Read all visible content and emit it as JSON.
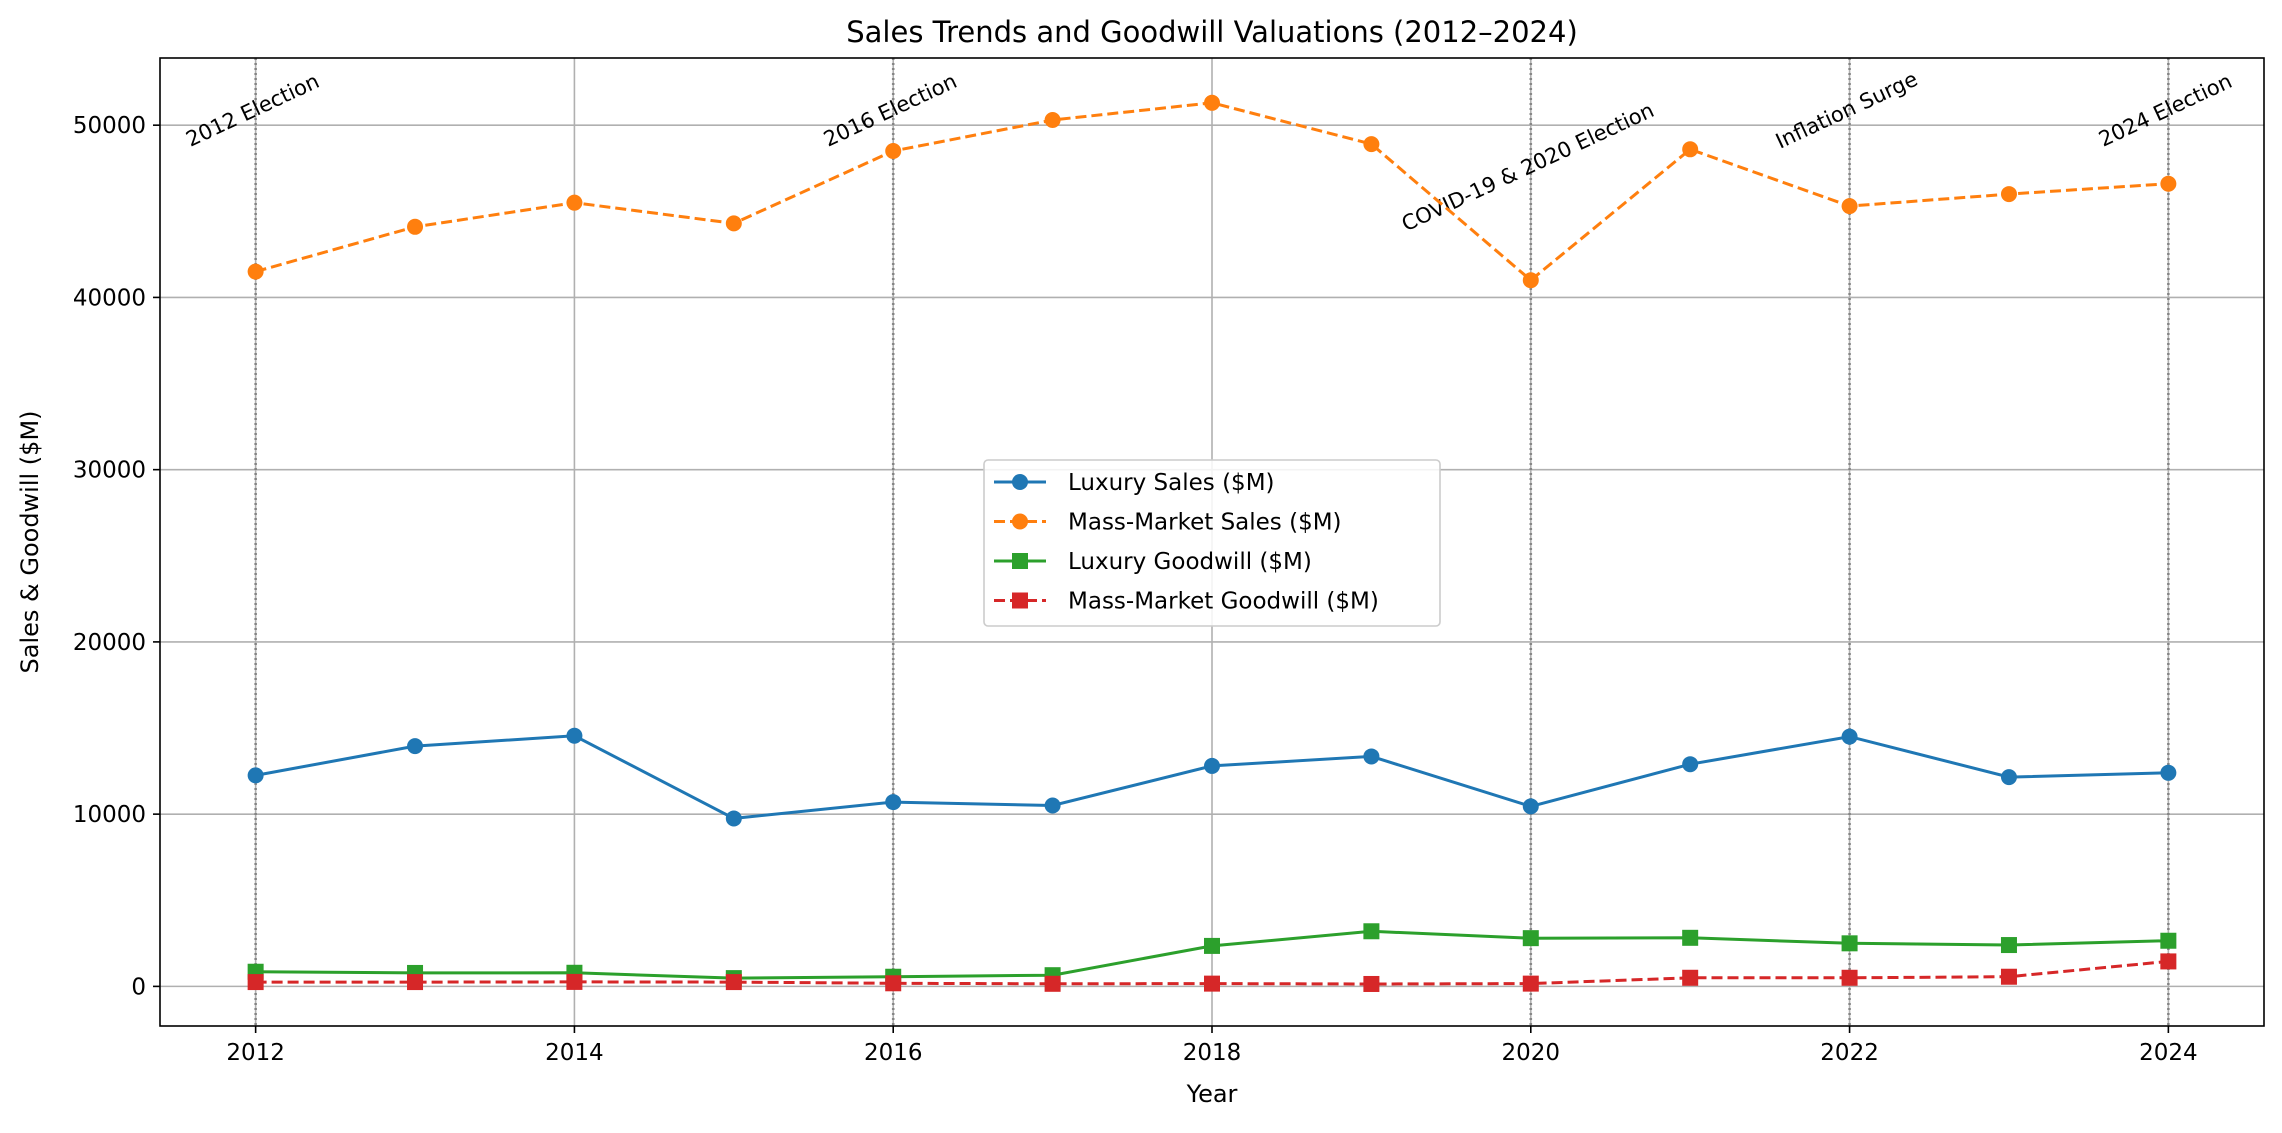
{
  "chart_data": {
    "type": "line",
    "title": "Sales Trends and Goodwill Valuations (2012–2024)",
    "xlabel": "Year",
    "ylabel": "Sales & Goodwill ($M)",
    "x": [
      2012,
      2013,
      2014,
      2015,
      2016,
      2017,
      2018,
      2019,
      2020,
      2021,
      2022,
      2023,
      2024
    ],
    "xlim": [
      2011.4,
      2024.6
    ],
    "ylim": [
      -2300,
      53900
    ],
    "xticks": [
      2012,
      2014,
      2016,
      2018,
      2020,
      2022,
      2024
    ],
    "yticks": [
      0,
      10000,
      20000,
      30000,
      40000,
      50000
    ],
    "grid": true,
    "legend_position": "center",
    "series": [
      {
        "name": "Luxury Sales ($M)",
        "color": "#1f77b4",
        "marker": "circle",
        "linestyle": "solid",
        "values": [
          12250,
          13950,
          14550,
          9750,
          10700,
          10500,
          12800,
          13350,
          10450,
          12900,
          14500,
          12150,
          12400
        ]
      },
      {
        "name": "Mass-Market Sales ($M)",
        "color": "#ff7f0e",
        "marker": "circle",
        "linestyle": "dashed",
        "values": [
          41500,
          44100,
          45500,
          44300,
          48500,
          50300,
          51300,
          48900,
          41000,
          48600,
          45300,
          46000,
          46600
        ]
      },
      {
        "name": "Luxury Goodwill ($M)",
        "color": "#2ca02c",
        "marker": "square",
        "linestyle": "solid",
        "values": [
          850,
          780,
          790,
          480,
          560,
          650,
          2350,
          3200,
          2800,
          2820,
          2500,
          2400,
          2650
        ]
      },
      {
        "name": "Mass-Market Goodwill ($M)",
        "color": "#d62728",
        "marker": "square",
        "linestyle": "dashed",
        "values": [
          250,
          250,
          260,
          250,
          180,
          150,
          160,
          140,
          160,
          500,
          500,
          560,
          1450
        ]
      }
    ],
    "events": [
      {
        "year": 2012,
        "label": "2012 Election",
        "y": 50500
      },
      {
        "year": 2016,
        "label": "2016 Election",
        "y": 50500
      },
      {
        "year": 2020,
        "label": "COVID-19 & 2020 Election",
        "y": 47200
      },
      {
        "year": 2022,
        "label": "Inflation Surge",
        "y": 50500
      },
      {
        "year": 2024,
        "label": "2024 Election",
        "y": 50500
      }
    ]
  }
}
